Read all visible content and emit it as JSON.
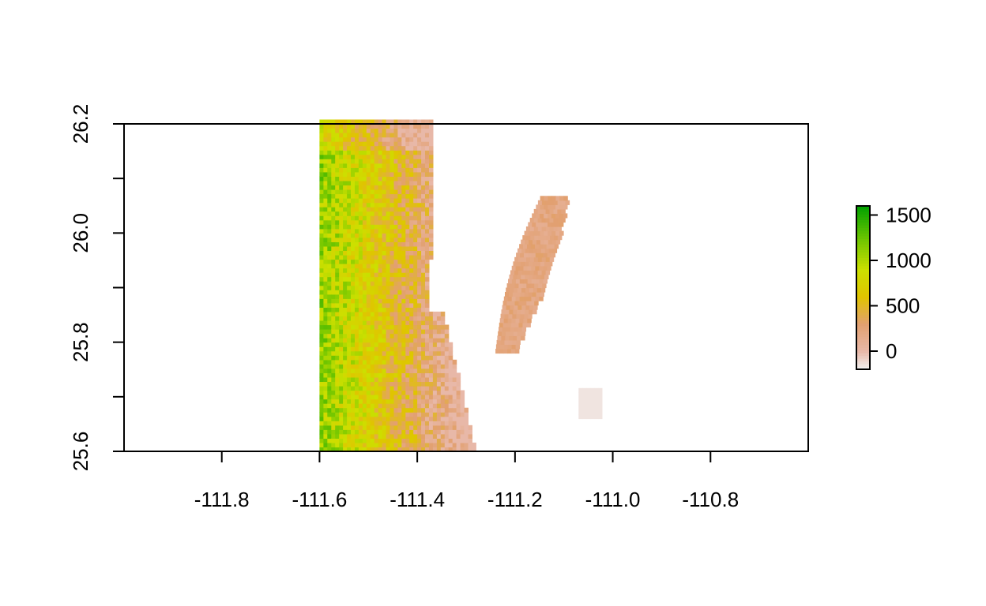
{
  "chart_data": {
    "type": "heatmap",
    "title": "",
    "xlabel": "",
    "ylabel": "",
    "xlim": [
      -112.0,
      -110.6
    ],
    "ylim": [
      25.6,
      26.2
    ],
    "x_ticks": [
      -111.8,
      -111.6,
      -111.4,
      -111.2,
      -111.0,
      -110.8
    ],
    "x_tick_labels": [
      "-111.8",
      "-111.6",
      "-111.4",
      "-111.2",
      "-111.0",
      "-110.8"
    ],
    "y_ticks": [
      25.6,
      25.8,
      26.0,
      26.2
    ],
    "y_tick_labels": [
      "25.6",
      "25.8",
      "26.0",
      "26.2"
    ],
    "grid": false,
    "colorbar": {
      "position": "right",
      "range": [
        -200,
        1600
      ],
      "ticks": [
        0,
        500,
        1000,
        1500
      ],
      "tick_labels": [
        "0",
        "500",
        "1000",
        "1500"
      ],
      "colors": [
        "#f2f2f2",
        "#e8b8a8",
        "#e8a070",
        "#e6c000",
        "#c8e000",
        "#3aa800",
        "#00a600"
      ]
    },
    "raster_summary": {
      "extent_x": [
        -111.6,
        -111.15
      ],
      "extent_y": [
        25.6,
        26.2
      ],
      "value_range": [
        -200,
        1600
      ],
      "notes": "Elevation-style raster: high values (green) along western strip near -111.6 to -111.35, decreasing eastward to low values (pink) near the coast; island features near -111.15 to -111.05 (26.05 to 25.8) and a small near-zero patch near -111.05, 25.68."
    }
  }
}
